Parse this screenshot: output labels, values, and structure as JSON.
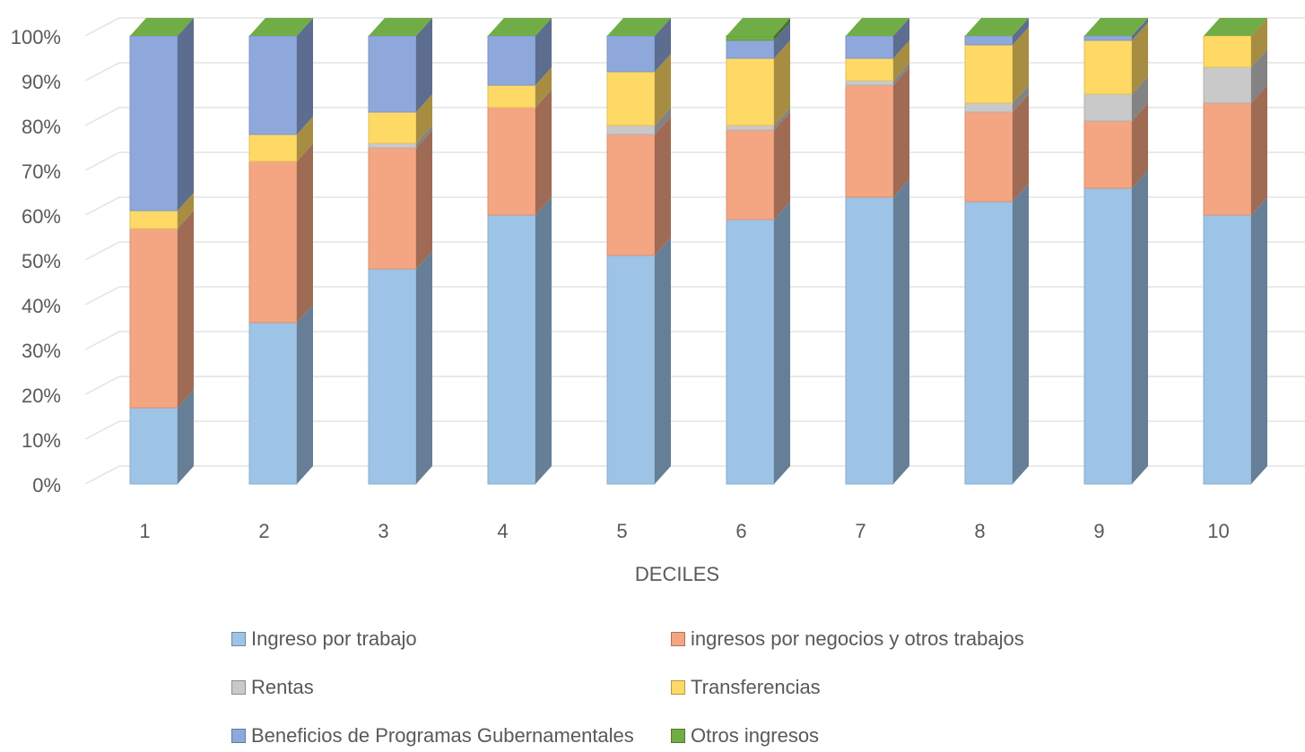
{
  "chart_data": {
    "type": "bar",
    "stacked": true,
    "three_d": true,
    "title": "",
    "xlabel": "DECILES",
    "ylabel": "",
    "ylim": [
      0,
      100
    ],
    "yticks": [
      "0%",
      "10%",
      "20%",
      "30%",
      "40%",
      "50%",
      "60%",
      "70%",
      "80%",
      "90%",
      "100%"
    ],
    "grid": true,
    "legend_position": "bottom",
    "categories": [
      "1",
      "2",
      "3",
      "4",
      "5",
      "6",
      "7",
      "8",
      "9",
      "10"
    ],
    "series": [
      {
        "name": "Ingreso por trabajo",
        "color": "#9dc3e6",
        "values": [
          17,
          36,
          48,
          60,
          51,
          59,
          64,
          63,
          66,
          60
        ]
      },
      {
        "name": "ingresos por negocios y otros trabajos",
        "color": "#f4a582",
        "values": [
          40,
          36,
          27,
          24,
          27,
          20,
          25,
          20,
          15,
          25
        ]
      },
      {
        "name": "Rentas",
        "color": "#c9c9c9",
        "values": [
          0,
          0,
          1,
          0,
          2,
          1,
          1,
          2,
          6,
          8
        ]
      },
      {
        "name": "Transferencias",
        "color": "#ffd966",
        "values": [
          4,
          6,
          7,
          5,
          12,
          15,
          5,
          13,
          12,
          7
        ]
      },
      {
        "name": "Beneficios de Programas Gubernamentales",
        "color": "#8fa8dc",
        "values": [
          39,
          22,
          17,
          11,
          8,
          4,
          5,
          2,
          1,
          0
        ]
      },
      {
        "name": "Otros ingresos",
        "color": "#70ad47",
        "values": [
          0,
          0,
          0,
          0,
          0,
          1,
          0,
          0,
          0,
          0
        ]
      }
    ]
  }
}
